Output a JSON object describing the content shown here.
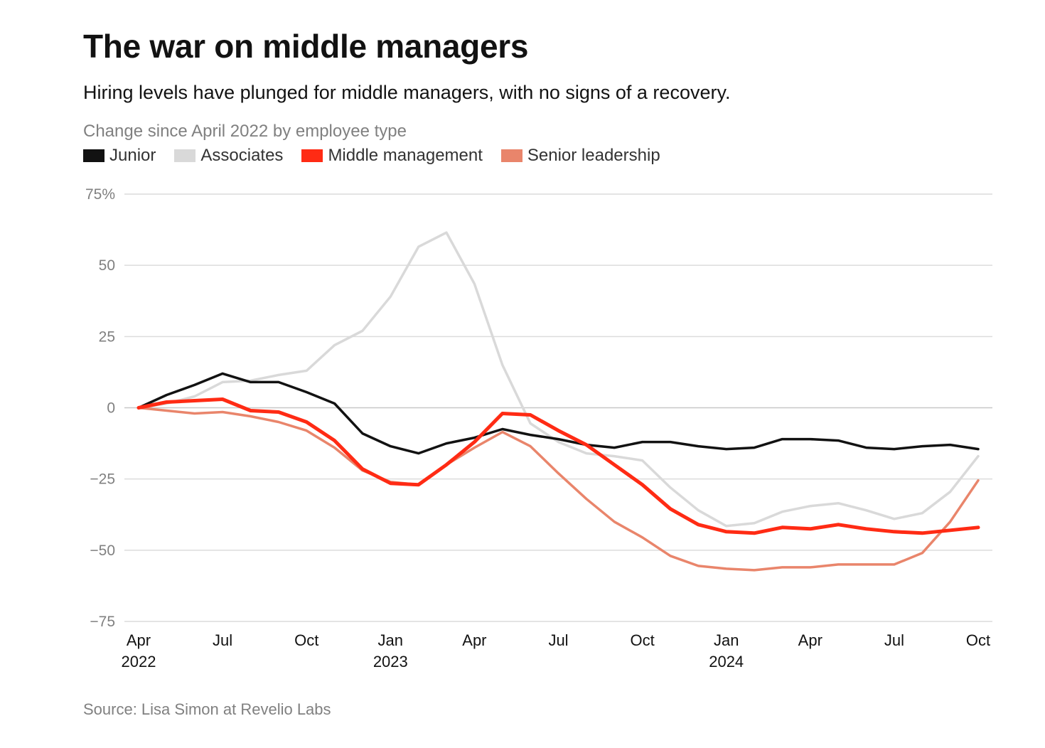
{
  "chart_data": {
    "type": "line",
    "title": "The war on middle managers",
    "subtitle": "Hiring levels have plunged for middle managers, with no signs of a recovery.",
    "caption": "Change since April 2022 by employee type",
    "source": "Source: Lisa Simon at Revelio Labs",
    "x": [
      "2022-04",
      "2022-05",
      "2022-06",
      "2022-07",
      "2022-08",
      "2022-09",
      "2022-10",
      "2022-11",
      "2022-12",
      "2023-01",
      "2023-02",
      "2023-03",
      "2023-04",
      "2023-05",
      "2023-06",
      "2023-07",
      "2023-08",
      "2023-09",
      "2023-10",
      "2023-11",
      "2023-12",
      "2024-01",
      "2024-02",
      "2024-03",
      "2024-04",
      "2024-05",
      "2024-06",
      "2024-07",
      "2024-08",
      "2024-09",
      "2024-10"
    ],
    "ylim": [
      -75,
      75
    ],
    "y_ticks": [
      {
        "value": 75,
        "label": "75%"
      },
      {
        "value": 50,
        "label": "50"
      },
      {
        "value": 25,
        "label": "25"
      },
      {
        "value": 0,
        "label": "0"
      },
      {
        "value": -25,
        "label": "−25"
      },
      {
        "value": -50,
        "label": "−50"
      },
      {
        "value": -75,
        "label": "−75"
      }
    ],
    "x_ticks": [
      {
        "index": 0,
        "label": "Apr",
        "year": "2022"
      },
      {
        "index": 3,
        "label": "Jul",
        "year": ""
      },
      {
        "index": 6,
        "label": "Oct",
        "year": ""
      },
      {
        "index": 9,
        "label": "Jan",
        "year": "2023"
      },
      {
        "index": 12,
        "label": "Apr",
        "year": ""
      },
      {
        "index": 15,
        "label": "Jul",
        "year": ""
      },
      {
        "index": 18,
        "label": "Oct",
        "year": ""
      },
      {
        "index": 21,
        "label": "Jan",
        "year": "2024"
      },
      {
        "index": 24,
        "label": "Apr",
        "year": ""
      },
      {
        "index": 27,
        "label": "Jul",
        "year": ""
      },
      {
        "index": 30,
        "label": "Oct",
        "year": ""
      }
    ],
    "grid": true,
    "legend_position": "top-left",
    "series": [
      {
        "name": "Associates",
        "color": "#d9d9d9",
        "values": [
          0,
          1.5,
          4,
          9,
          9.5,
          11.5,
          13,
          22,
          27,
          39,
          56.5,
          61.5,
          43.5,
          15,
          -5.5,
          -12,
          -16,
          -17,
          -18.5,
          -28,
          -36,
          -41.5,
          -40.5,
          -36.5,
          -34.5,
          -33.5,
          -36,
          -39,
          -37,
          -29.5,
          -17
        ]
      },
      {
        "name": "Senior leadership",
        "color": "#e9856b",
        "values": [
          0,
          -1,
          -2,
          -1.5,
          -3,
          -5,
          -8,
          -14,
          -22,
          -26,
          -27,
          -20,
          -14,
          -8.5,
          -13.5,
          -23,
          -32,
          -40,
          -45.5,
          -52,
          -55.5,
          -56.5,
          -57,
          -56,
          -56,
          -55,
          -55,
          -55,
          -51,
          -40,
          -25.5
        ]
      },
      {
        "name": "Junior",
        "color": "#121212",
        "values": [
          0,
          4.5,
          8,
          12,
          9,
          9,
          5.5,
          1.5,
          -9,
          -13.5,
          -16,
          -12.5,
          -10.5,
          -7.5,
          -9.5,
          -11,
          -13,
          -14,
          -12,
          -12,
          -13.5,
          -14.5,
          -14,
          -11,
          -11,
          -11.5,
          -14,
          -14.5,
          -13.5,
          -13,
          -14.5
        ]
      },
      {
        "name": "Middle management",
        "color": "#ff2b14",
        "values": [
          0,
          2,
          2.5,
          3,
          -1,
          -1.5,
          -5,
          -11.5,
          -21.5,
          -26.5,
          -27,
          -20,
          -12,
          -2,
          -2.5,
          -8,
          -13,
          -20,
          -27,
          -35.5,
          -41,
          -43.5,
          -44,
          -42,
          -42.5,
          -41,
          -42.5,
          -43.5,
          -44,
          -43,
          -42
        ]
      }
    ]
  }
}
